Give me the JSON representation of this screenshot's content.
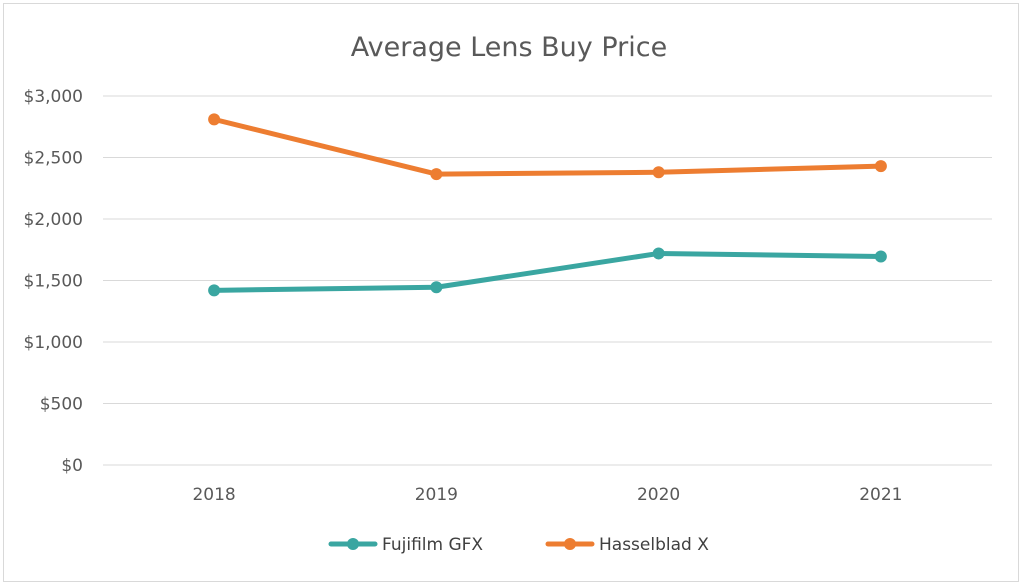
{
  "chart_data": {
    "type": "line",
    "title": "Average Lens Buy Price",
    "categories": [
      "2018",
      "2019",
      "2020",
      "2021"
    ],
    "y_ticks": [
      "$0",
      "$500",
      "$1,000",
      "$1,500",
      "$2,000",
      "$2,500",
      "$3,000"
    ],
    "ylim": [
      0,
      3000
    ],
    "grid": true,
    "legend_position": "bottom",
    "series": [
      {
        "name": "Fujifilm GFX",
        "color": "#3aa6a1",
        "values": [
          1420,
          1445,
          1720,
          1695
        ]
      },
      {
        "name": "Hasselblad X",
        "color": "#ed7d31",
        "values": [
          2810,
          2365,
          2380,
          2430
        ]
      }
    ]
  }
}
